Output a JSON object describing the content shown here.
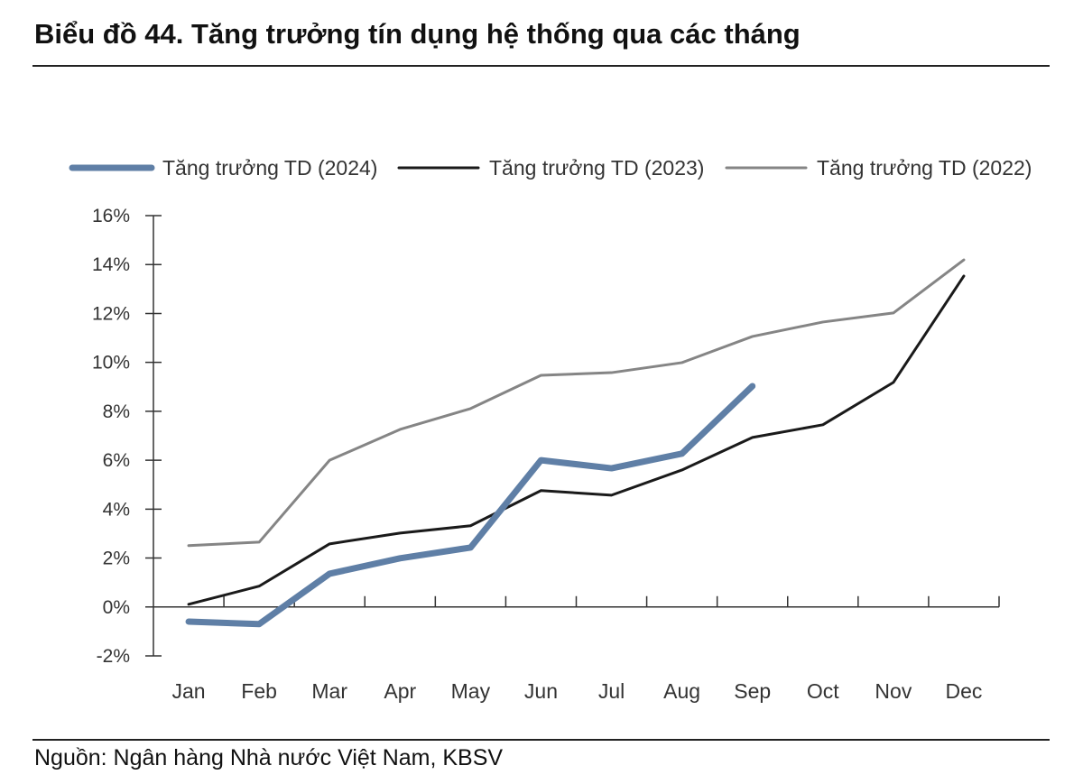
{
  "title": "Biểu đồ 44. Tăng trưởng tín dụng hệ thống qua các tháng",
  "source": "Nguồn: Ngân hàng Nhà nước Việt Nam, KBSV",
  "chart_data": {
    "type": "line",
    "title": "Biểu đồ 44. Tăng trưởng tín dụng hệ thống qua các tháng",
    "xlabel": "",
    "ylabel": "",
    "categories": [
      "Jan",
      "Feb",
      "Mar",
      "Apr",
      "May",
      "Jun",
      "Jul",
      "Aug",
      "Sep",
      "Oct",
      "Nov",
      "Dec"
    ],
    "ylim": [
      -2,
      16
    ],
    "yticks": [
      -2,
      0,
      2,
      4,
      6,
      8,
      10,
      12,
      14,
      16
    ],
    "ytick_labels": [
      "-2%",
      "0%",
      "2%",
      "4%",
      "6%",
      "8%",
      "10%",
      "12%",
      "14%",
      "16%"
    ],
    "legend_position": "top",
    "grid": false,
    "series": [
      {
        "name": "Tăng trưởng TD (2024)",
        "color": "#5f7fa6",
        "values": [
          -0.6,
          -0.7,
          1.36,
          1.99,
          2.43,
          6.0,
          5.67,
          6.27,
          9.03,
          null,
          null,
          null
        ]
      },
      {
        "name": "Tăng trưởng TD (2023)",
        "color": "#1a1a1a",
        "values": [
          0.11,
          0.85,
          2.58,
          3.02,
          3.32,
          4.76,
          4.57,
          5.6,
          6.93,
          7.45,
          9.18,
          13.53
        ]
      },
      {
        "name": "Tăng trưởng TD (2022)",
        "color": "#858585",
        "values": [
          2.51,
          2.65,
          6.0,
          7.26,
          8.11,
          9.47,
          9.58,
          9.99,
          11.06,
          11.65,
          12.02,
          14.19
        ]
      }
    ]
  }
}
